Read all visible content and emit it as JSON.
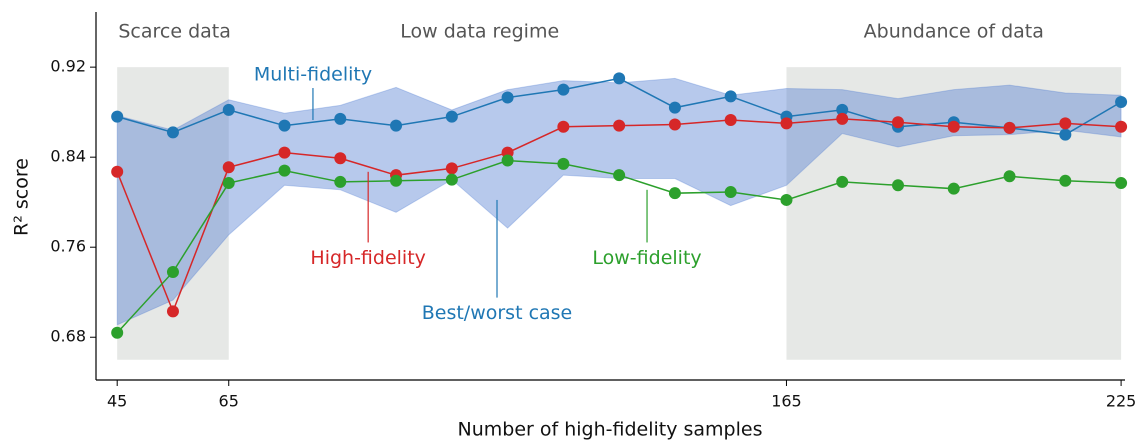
{
  "chart_data": {
    "type": "line",
    "xlabel": "Number of high-fidelity samples",
    "ylabel": "R² score",
    "x": [
      45,
      55,
      65,
      75,
      85,
      95,
      105,
      115,
      125,
      135,
      145,
      155,
      165,
      175,
      185,
      195,
      205,
      215,
      225
    ],
    "xlim": [
      41.2,
      225.7
    ],
    "ylim": [
      0.642,
      0.969
    ],
    "xticks": [
      45,
      65,
      165,
      225
    ],
    "yticks": [
      0.68,
      0.76,
      0.84,
      0.92
    ],
    "series": [
      {
        "name": "Multi-fidelity",
        "color": "#1f77b4",
        "values": [
          0.876,
          0.862,
          0.882,
          0.868,
          0.874,
          0.868,
          0.876,
          0.893,
          0.9,
          0.91,
          0.884,
          0.894,
          0.876,
          0.882,
          0.867,
          0.871,
          0.866,
          0.86,
          0.889
        ]
      },
      {
        "name": "High-fidelity",
        "color": "#d62728",
        "values": [
          0.827,
          0.703,
          0.831,
          0.844,
          0.839,
          0.824,
          0.83,
          0.844,
          0.867,
          0.868,
          0.869,
          0.873,
          0.87,
          0.874,
          0.871,
          0.867,
          0.866,
          0.87,
          0.867
        ]
      },
      {
        "name": "Low-fidelity",
        "color": "#2ca02c",
        "values": [
          0.684,
          0.738,
          0.817,
          0.828,
          0.818,
          0.819,
          0.82,
          0.837,
          0.834,
          0.824,
          0.808,
          0.809,
          0.802,
          0.818,
          0.815,
          0.812,
          0.823,
          0.819,
          0.817
        ]
      }
    ],
    "band": {
      "name": "Best/worst case",
      "color": "#1f77b4",
      "upper": [
        0.877,
        0.864,
        0.891,
        0.879,
        0.886,
        0.902,
        0.882,
        0.9,
        0.908,
        0.906,
        0.91,
        0.895,
        0.901,
        0.9,
        0.892,
        0.9,
        0.904,
        0.897,
        0.895
      ],
      "lower": [
        0.691,
        0.713,
        0.771,
        0.815,
        0.811,
        0.791,
        0.82,
        0.777,
        0.824,
        0.821,
        0.821,
        0.797,
        0.815,
        0.861,
        0.849,
        0.859,
        0.86,
        0.864,
        0.858
      ]
    },
    "shaded_spans": [
      [
        45,
        65
      ],
      [
        165,
        225
      ]
    ],
    "shaded_yrange": [
      0.66,
      0.92
    ],
    "region_labels": [
      {
        "text": "Scarce data",
        "x": 55.3
      },
      {
        "text": "Low data regime",
        "x": 110
      },
      {
        "text": "Abundance of data",
        "x": 195
      }
    ],
    "annotations": [
      {
        "text": "Multi-fidelity",
        "color": "#1f77b4",
        "xy": [
          80.1,
          0.873
        ],
        "xytext": [
          80.1,
          0.913
        ]
      },
      {
        "text": "High-fidelity",
        "color": "#d62728",
        "xy": [
          90,
          0.827
        ],
        "xytext": [
          90,
          0.75
        ]
      },
      {
        "text": "Best/worst case",
        "color": "#1f77b4",
        "xy": [
          113.1,
          0.802
        ],
        "xytext": [
          113.1,
          0.701
        ]
      },
      {
        "text": "Low-fidelity",
        "color": "#2ca02c",
        "xy": [
          140,
          0.811
        ],
        "xytext": [
          140,
          0.75
        ]
      }
    ]
  }
}
